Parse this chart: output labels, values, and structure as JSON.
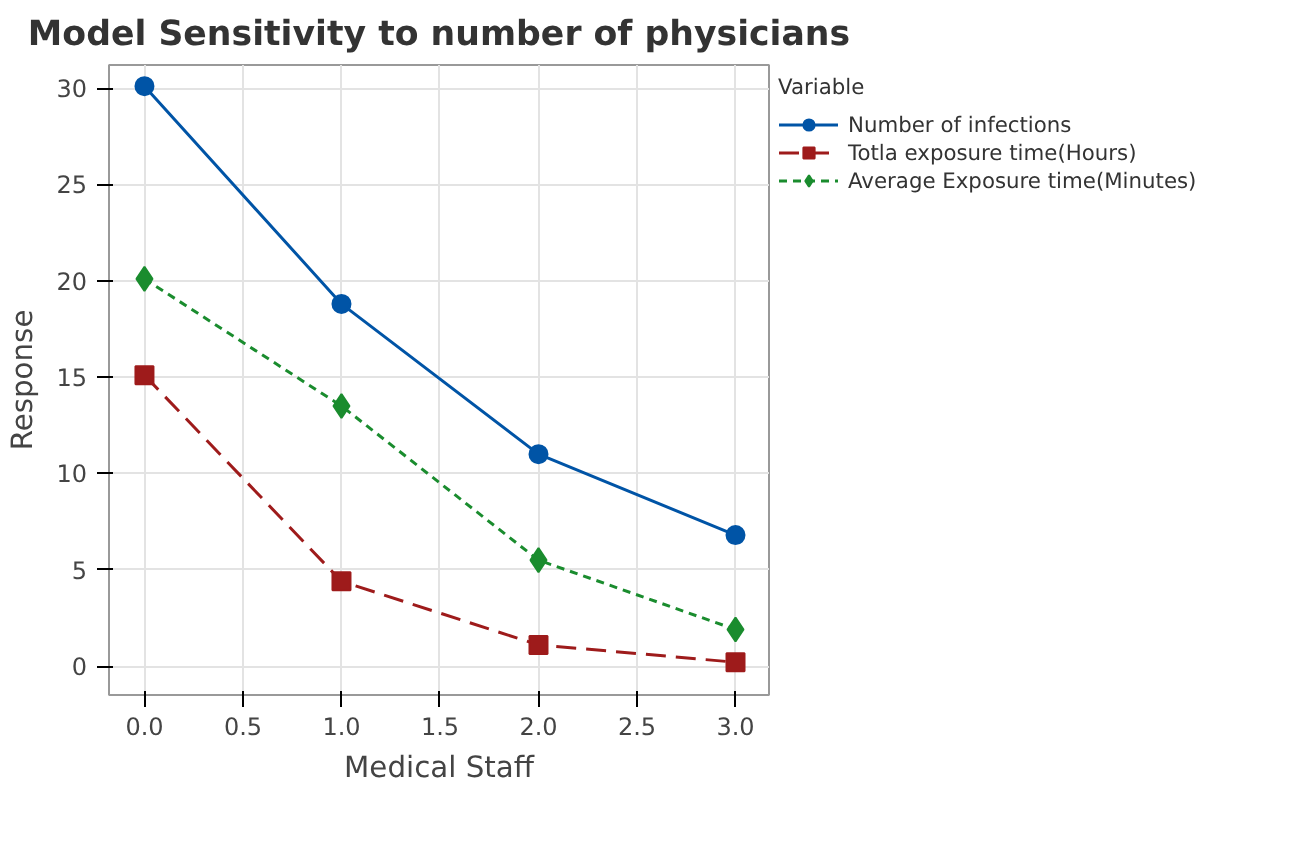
{
  "chart_data": {
    "type": "line",
    "title": "Model Sensitivity to number of physicians",
    "xlabel": "Medical Staff",
    "ylabel": "Response",
    "legend_title": "Variable",
    "x": [
      0.0,
      1.0,
      2.0,
      3.0
    ],
    "series": [
      {
        "name": "Number of infections",
        "color": "#0054a6",
        "values": [
          30.1,
          18.8,
          11.0,
          6.8
        ],
        "marker": "circle",
        "line_style": "solid"
      },
      {
        "name": "Totla exposure time(Hours)",
        "color": "#9e1b1b",
        "values": [
          15.1,
          4.4,
          1.1,
          0.2
        ],
        "marker": "square",
        "line_style": "dashed"
      },
      {
        "name": "Average Exposure time(Minutes)",
        "color": "#1a8c2e",
        "values": [
          20.1,
          13.5,
          5.5,
          1.9
        ],
        "marker": "diamond",
        "line_style": "dotted"
      }
    ],
    "xlim": [
      -0.18,
      3.17
    ],
    "ylim": [
      -1.5,
      31.2
    ],
    "xticks": [
      {
        "value": 0,
        "label": "0.0"
      },
      {
        "value": 0.5,
        "label": "0.5"
      },
      {
        "value": 1,
        "label": "1.0"
      },
      {
        "value": 1.5,
        "label": "1.5"
      },
      {
        "value": 2,
        "label": "2.0"
      },
      {
        "value": 2.5,
        "label": "2.5"
      },
      {
        "value": 3,
        "label": "3.0"
      }
    ],
    "yticks": [
      0,
      5,
      10,
      15,
      20,
      25,
      30
    ],
    "grid": true,
    "legend": "right"
  }
}
